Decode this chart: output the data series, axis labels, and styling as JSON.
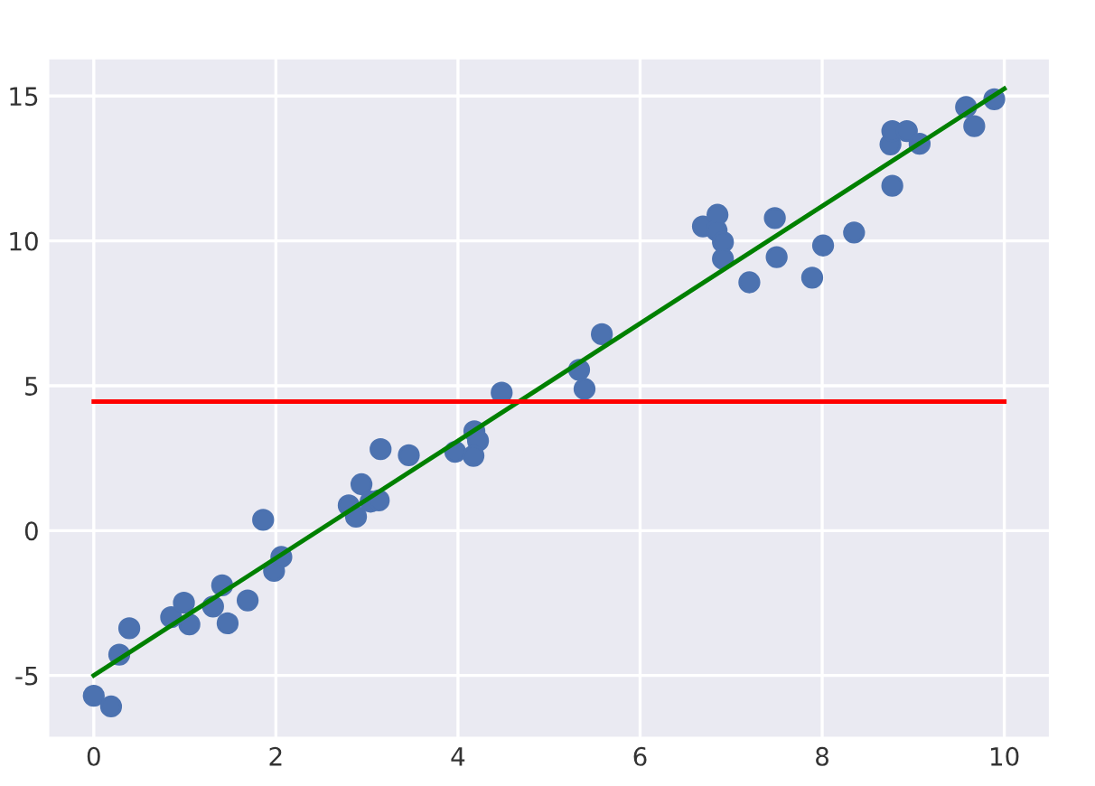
{
  "chart_data": {
    "type": "scatter",
    "xlim": [
      -0.5,
      10.5
    ],
    "ylim": [
      -7.15,
      16.3
    ],
    "xticks": [
      0,
      2,
      4,
      6,
      8,
      10
    ],
    "yticks": [
      -5,
      0,
      5,
      10,
      15
    ],
    "grid": true,
    "series": [
      {
        "color": "#4c72b0",
        "marker": "circle",
        "x": [
          0,
          0.19,
          0.28,
          0.39,
          0.85,
          0.99,
          1.05,
          1.31,
          1.41,
          1.47,
          1.69,
          1.86,
          1.98,
          2.06,
          2.8,
          2.88,
          2.94,
          3.04,
          3.13,
          3.15,
          3.46,
          3.97,
          4.18,
          4.22,
          4.17,
          4.48,
          5.33,
          5.39,
          5.58,
          6.69,
          6.85,
          6.84,
          6.91,
          6.91,
          7.2,
          7.48,
          7.5,
          7.89,
          8.01,
          8.35,
          8.77,
          8.75,
          8.77,
          8.93,
          9.07,
          9.58,
          9.67,
          9.89
        ],
        "values": [
          -5.7,
          -6.07,
          -4.28,
          -3.37,
          -2.99,
          -2.49,
          -3.24,
          -2.62,
          -1.89,
          -3.2,
          -2.41,
          0.37,
          -1.39,
          -0.91,
          0.87,
          0.48,
          1.6,
          1.0,
          1.04,
          2.81,
          2.6,
          2.72,
          3.43,
          3.1,
          2.58,
          4.76,
          5.55,
          4.89,
          6.78,
          10.5,
          10.9,
          10.36,
          9.96,
          9.38,
          8.57,
          10.79,
          9.44,
          8.73,
          9.84,
          10.29,
          11.9,
          13.33,
          13.79,
          13.79,
          13.35,
          14.62,
          13.96,
          14.89
        ]
      },
      {
        "type": "line",
        "color": "#008000",
        "marker": "none",
        "x": [
          0,
          10
        ],
        "values": [
          -5,
          15.25
        ]
      },
      {
        "type": "line",
        "color": "#ff0000",
        "marker": "none",
        "x": [
          0,
          10
        ],
        "values": [
          4.45,
          4.45
        ]
      }
    ]
  }
}
